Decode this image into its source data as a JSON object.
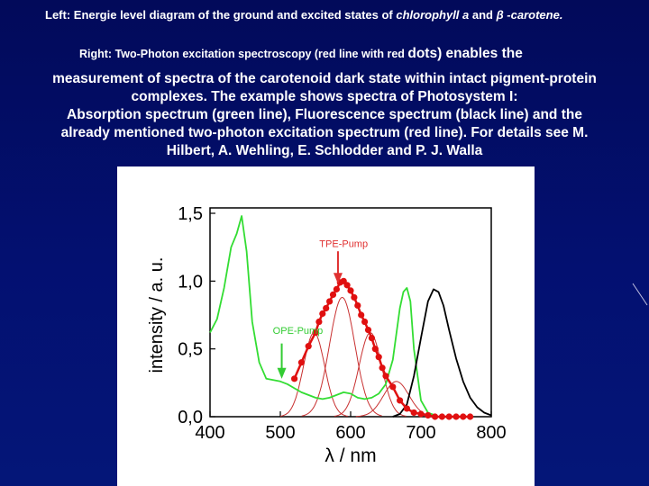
{
  "caption": {
    "line1_a": "Left: Energie level diagram of the ground and excited states of ",
    "line1_chl": "chlorophyll a",
    "line1_b": " and ",
    "line1_beta": "β",
    "line1_car": " -carotene.",
    "line2_small": "Right: Two-Photon excitation spectroscopy (red line with red ",
    "line2_big": "dots) enables the",
    "para_lines": [
      "measurement of spectra of  the carotenoid dark state within intact pigment-protein",
      "complexes. The example shows spectra of Photosystem I:",
      "Absorption spectrum (green line), Fluorescence spectrum (black line) and the",
      "already mentioned two-photon excitation spectrum (red line).  For details see M.",
      "Hilbert, A. Wehling, E. Schlodder and P. J. Walla"
    ]
  },
  "colors": {
    "absorption": "#33dd33",
    "fluorescence": "#000000",
    "tpe": "#e01010",
    "gaussian": "#c83030",
    "pump_arrow": "#e03030",
    "ope_arrow": "#33cc33"
  },
  "chart_data": {
    "type": "line",
    "xlabel": "λ / nm",
    "ylabel": "intensity / a. u.",
    "xlim": [
      400,
      800
    ],
    "ylim": [
      0,
      1.5
    ],
    "x_ticks": [
      "400",
      "500",
      "600",
      "700",
      "800"
    ],
    "y_ticks": [
      "0,0",
      "0,5",
      "1,0",
      "1,5"
    ],
    "annotations": [
      {
        "text": "TPE-Pump",
        "x": 590,
        "y": 1.25
      },
      {
        "text": "OPE-Pump",
        "x": 525,
        "y": 0.61
      }
    ],
    "series": [
      {
        "style": "absorption",
        "x": [
          400,
          410,
          420,
          430,
          438,
          445,
          452,
          460,
          470,
          480,
          490,
          500,
          510,
          520,
          530,
          540,
          550,
          560,
          570,
          580,
          590,
          600,
          610,
          620,
          630,
          640,
          650,
          660,
          670,
          675,
          680,
          685,
          690,
          700,
          710,
          720
        ],
        "y": [
          0.62,
          0.72,
          0.95,
          1.25,
          1.35,
          1.48,
          1.22,
          0.7,
          0.4,
          0.28,
          0.27,
          0.26,
          0.24,
          0.21,
          0.18,
          0.16,
          0.14,
          0.13,
          0.14,
          0.16,
          0.18,
          0.17,
          0.14,
          0.13,
          0.14,
          0.17,
          0.24,
          0.42,
          0.8,
          0.92,
          0.95,
          0.85,
          0.5,
          0.12,
          0.03,
          0.01
        ]
      },
      {
        "style": "fluorescence",
        "x": [
          660,
          670,
          680,
          690,
          700,
          710,
          718,
          725,
          732,
          740,
          750,
          760,
          770,
          780,
          790,
          800
        ],
        "y": [
          0.0,
          0.02,
          0.09,
          0.3,
          0.58,
          0.85,
          0.94,
          0.92,
          0.82,
          0.64,
          0.43,
          0.26,
          0.14,
          0.07,
          0.03,
          0.01
        ]
      },
      {
        "style": "tpe",
        "x": [
          520,
          530,
          540,
          550,
          555,
          560,
          565,
          570,
          575,
          580,
          585,
          590,
          595,
          600,
          605,
          610,
          615,
          620,
          625,
          630,
          635,
          640,
          645,
          650,
          660,
          670,
          680,
          690,
          700,
          710,
          720,
          730,
          740,
          750,
          760,
          770
        ],
        "y": [
          0.28,
          0.4,
          0.52,
          0.62,
          0.7,
          0.76,
          0.8,
          0.85,
          0.9,
          0.94,
          0.99,
          1.0,
          0.97,
          0.93,
          0.88,
          0.82,
          0.75,
          0.7,
          0.64,
          0.58,
          0.5,
          0.44,
          0.36,
          0.3,
          0.22,
          0.12,
          0.06,
          0.03,
          0.02,
          0.01,
          0.0,
          0.0,
          0.0,
          0.0,
          0.0,
          0.0
        ]
      }
    ],
    "gaussian_components": [
      {
        "center": 548,
        "amplitude": 0.62,
        "width": 15
      },
      {
        "center": 588,
        "amplitude": 0.88,
        "width": 18
      },
      {
        "center": 628,
        "amplitude": 0.62,
        "width": 16
      },
      {
        "center": 665,
        "amplitude": 0.26,
        "width": 18
      }
    ]
  }
}
